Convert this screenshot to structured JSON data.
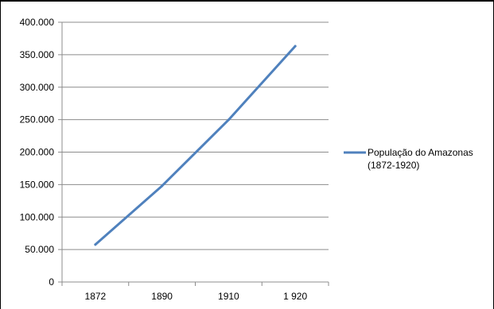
{
  "chart_data": {
    "type": "line",
    "title": "",
    "xlabel": "",
    "ylabel": "",
    "categories": [
      "1872",
      "1890",
      "1910",
      "1 920"
    ],
    "series": [
      {
        "name": "População do Amazonas (1872-1920)",
        "name_lines": [
          "População do Amazonas",
          "(1872-1920)"
        ],
        "values": [
          57610,
          147915,
          249756,
          363166
        ],
        "color": "#4f81bd"
      }
    ],
    "ylim": [
      0,
      400000
    ],
    "y_ticks": [
      {
        "value": 0,
        "label": "0"
      },
      {
        "value": 50000,
        "label": "50.000"
      },
      {
        "value": 100000,
        "label": "100.000"
      },
      {
        "value": 150000,
        "label": "150.000"
      },
      {
        "value": 200000,
        "label": "200.000"
      },
      {
        "value": 250000,
        "label": "250.000"
      },
      {
        "value": 300000,
        "label": "300.000"
      },
      {
        "value": 350000,
        "label": "350.000"
      },
      {
        "value": 400000,
        "label": "400.000"
      }
    ],
    "grid": true,
    "legend_position": "right"
  }
}
